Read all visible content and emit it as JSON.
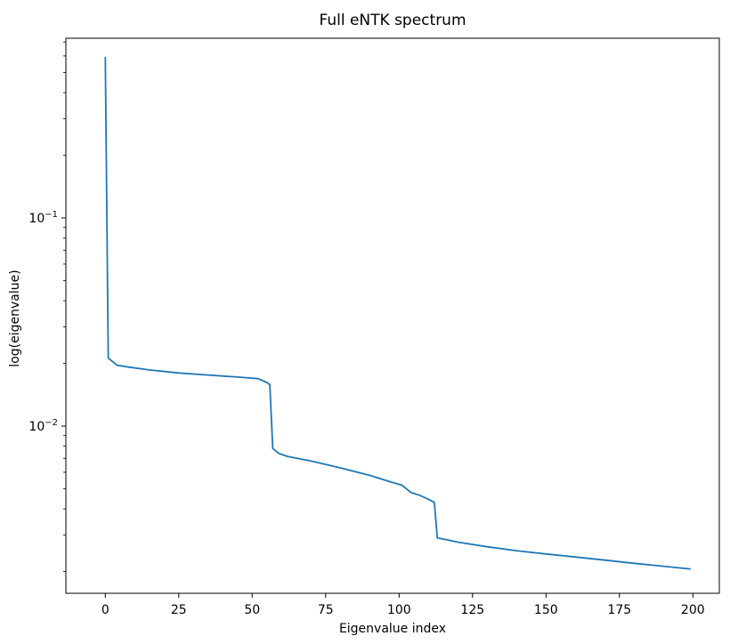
{
  "figure": {
    "background": "#ffffff",
    "text_color": "#000000"
  },
  "chart_data": {
    "type": "line",
    "title": "Full eNTK spectrum",
    "xlabel": "Eigenvalue index",
    "ylabel": "log(eigenvalue)",
    "xscale": "linear",
    "yscale": "log",
    "xlim": [
      -13.4,
      209.1
    ],
    "ylim": [
      0.00155,
      0.74
    ],
    "xticks": [
      0,
      25,
      50,
      75,
      100,
      125,
      150,
      175,
      200
    ],
    "yticks": [
      {
        "value": 0.1,
        "base": "10",
        "exponent": "-1"
      },
      {
        "value": 0.01,
        "base": "10",
        "exponent": "-2"
      }
    ],
    "grid": false,
    "legend": null,
    "line_color": "#1f77b4",
    "line_width": 1.8,
    "series": [
      {
        "name": "eNTK eigenvalues",
        "points": [
          [
            0,
            0.59
          ],
          [
            1,
            0.0212
          ],
          [
            4,
            0.0196
          ],
          [
            8,
            0.0192
          ],
          [
            15,
            0.0186
          ],
          [
            25,
            0.018
          ],
          [
            35,
            0.0176
          ],
          [
            45,
            0.0172
          ],
          [
            52,
            0.0169
          ],
          [
            55,
            0.0162
          ],
          [
            56,
            0.0158
          ],
          [
            57,
            0.0078
          ],
          [
            59,
            0.0074
          ],
          [
            62,
            0.00715
          ],
          [
            70,
            0.0068
          ],
          [
            80,
            0.0063
          ],
          [
            90,
            0.0058
          ],
          [
            97,
            0.0054
          ],
          [
            101,
            0.0052
          ],
          [
            104,
            0.0048
          ],
          [
            107,
            0.00465
          ],
          [
            110,
            0.00445
          ],
          [
            112,
            0.0043
          ],
          [
            113,
            0.0029
          ],
          [
            116,
            0.00285
          ],
          [
            120,
            0.00277
          ],
          [
            130,
            0.00263
          ],
          [
            140,
            0.00252
          ],
          [
            150,
            0.00243
          ],
          [
            160,
            0.00235
          ],
          [
            170,
            0.00227
          ],
          [
            180,
            0.00219
          ],
          [
            190,
            0.00212
          ],
          [
            199,
            0.00206
          ]
        ]
      }
    ]
  }
}
